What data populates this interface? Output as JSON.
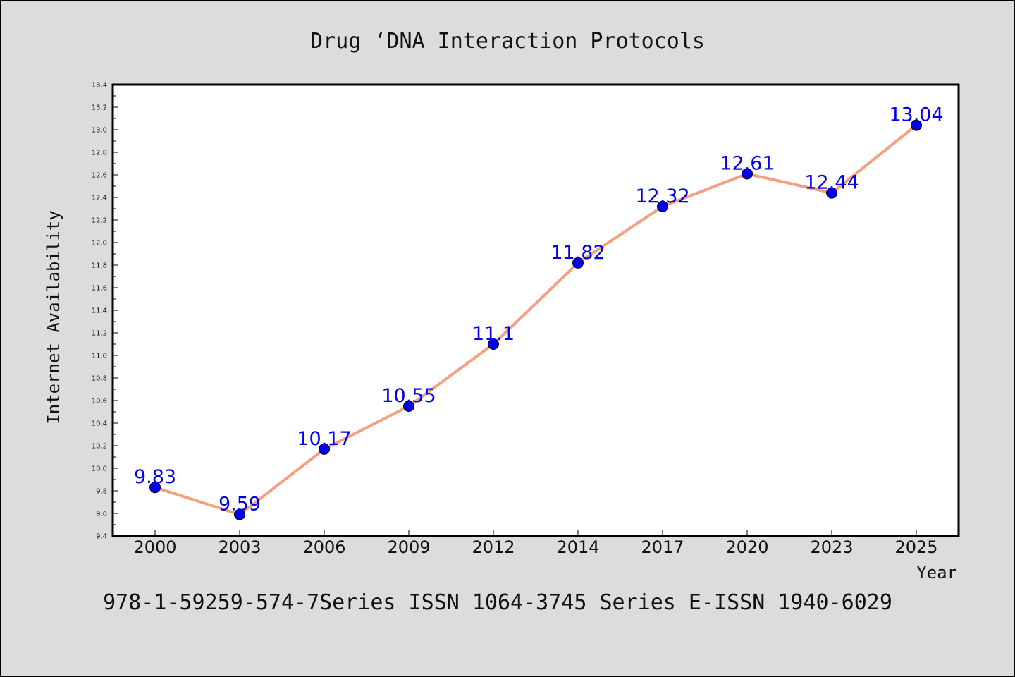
{
  "chart_data": {
    "type": "line",
    "title": "Drug ‘DNA Interaction Protocols",
    "xlabel": "Year",
    "ylabel": "Internet Availability",
    "categories": [
      "2000",
      "2003",
      "2006",
      "2009",
      "2012",
      "2014",
      "2017",
      "2020",
      "2023",
      "2025"
    ],
    "series": [
      {
        "values": [
          9.83,
          9.59,
          10.17,
          10.55,
          11.1,
          11.82,
          12.32,
          12.61,
          12.44,
          13.04
        ],
        "labels": [
          "9.83",
          "9.59",
          "10.17",
          "10.55",
          "11.1",
          "11.82",
          "12.32",
          "12.61",
          "12.44",
          "13.04"
        ],
        "line_color": "#f4a07e",
        "marker_color": "#0000ee",
        "label_color": "#0000ee"
      }
    ],
    "yticks": [
      "9.4",
      "9.6",
      "9.8",
      "10.0",
      "10.2",
      "10.4",
      "10.6",
      "10.8",
      "11.0",
      "11.2",
      "11.4",
      "11.6",
      "11.8",
      "12.0",
      "12.2",
      "12.4",
      "12.6",
      "12.8",
      "13.0",
      "13.2",
      "13.4"
    ],
    "ylim": [
      9.4,
      13.4
    ],
    "grid": false,
    "legend": "none"
  },
  "footer": "978-1-59259-574-7Series ISSN 1064-3745 Series E-ISSN 1940-6029",
  "colors": {
    "background": "#dcdcdc",
    "plot_background": "#ffffff",
    "axis": "#000000"
  }
}
